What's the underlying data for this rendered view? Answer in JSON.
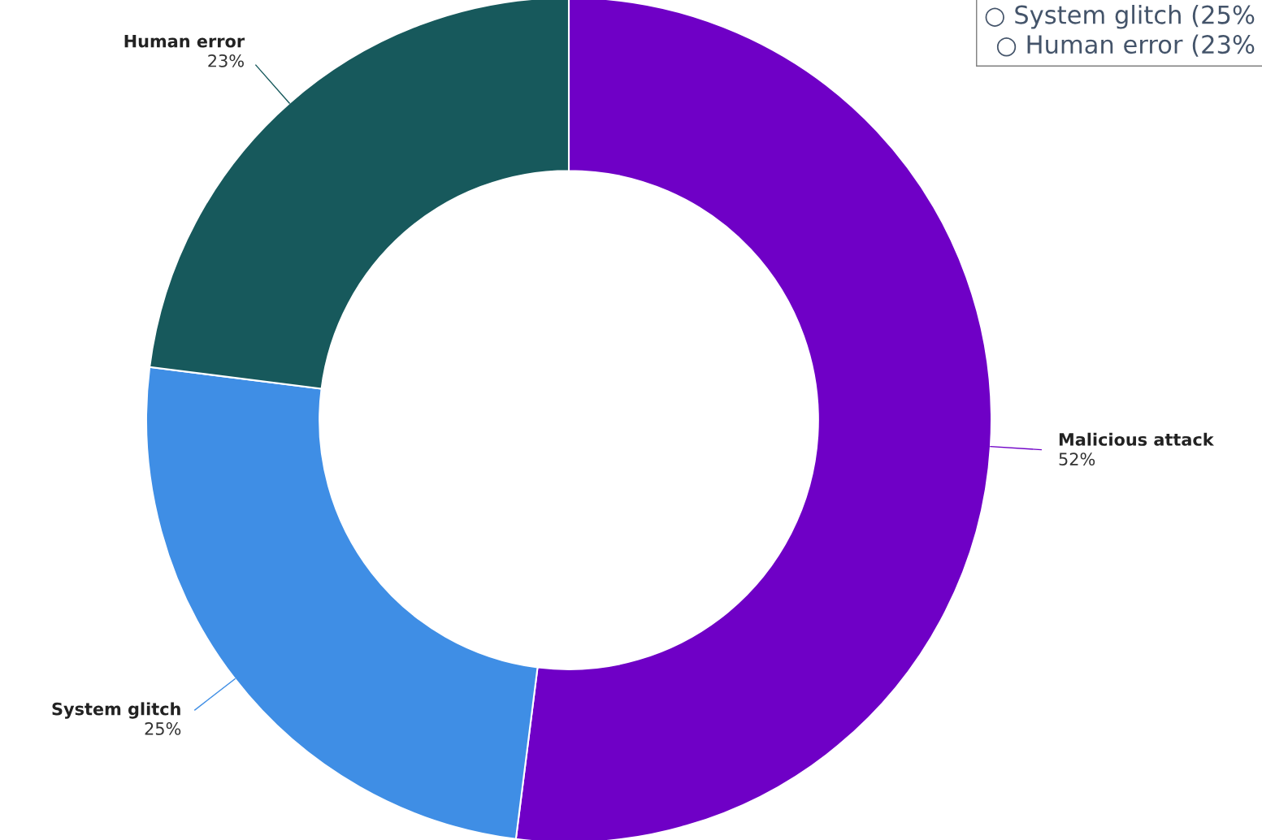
{
  "chart_data": {
    "type": "donut",
    "categories": [
      "Malicious attack",
      "System glitch",
      "Human error"
    ],
    "values": [
      52,
      25,
      23
    ],
    "value_labels": [
      "52%",
      "25%",
      "23%"
    ],
    "colors": [
      "#6f00c6",
      "#3f8ee5",
      "#17595c"
    ],
    "annotations": [
      "○ System glitch (25%",
      "○ Human error (23%"
    ],
    "legend": false
  }
}
